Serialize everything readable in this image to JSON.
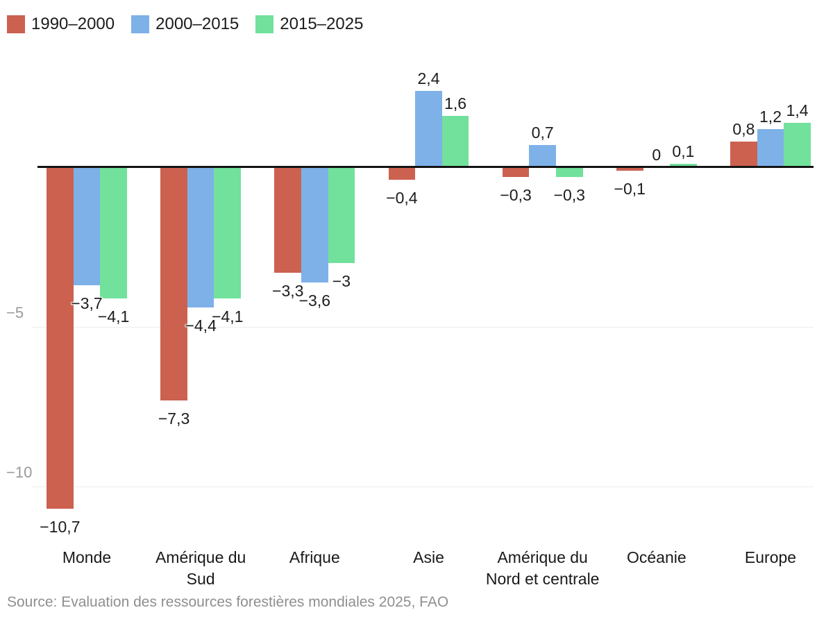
{
  "legend": {
    "items": [
      {
        "label": "1990–2000",
        "color": "#cc6150"
      },
      {
        "label": "2000–2015",
        "color": "#7db1e8"
      },
      {
        "label": "2015–2025",
        "color": "#71e19c"
      }
    ]
  },
  "chart_data": {
    "type": "bar",
    "title": "",
    "xlabel": "",
    "ylabel": "",
    "categories": [
      "Monde",
      "Amérique du Sud",
      "Afrique",
      "Asie",
      "Amérique du Nord et centrale",
      "Océanie",
      "Europe"
    ],
    "category_lines": [
      [
        "Monde"
      ],
      [
        "Amérique du",
        "Sud"
      ],
      [
        "Afrique"
      ],
      [
        "Asie"
      ],
      [
        "Amérique du",
        "Nord et centrale"
      ],
      [
        "Océanie"
      ],
      [
        "Europe"
      ]
    ],
    "series": [
      {
        "name": "1990–2000",
        "color": "#cc6150",
        "values": [
          -10.7,
          -7.3,
          -3.3,
          -0.4,
          -0.3,
          -0.1,
          0.8
        ],
        "labels": [
          "−10,7",
          "−7,3",
          "−3,3",
          "−0,4",
          "−0,3",
          "−0,1",
          "0,8"
        ]
      },
      {
        "name": "2000–2015",
        "color": "#7db1e8",
        "values": [
          -3.7,
          -4.4,
          -3.6,
          2.4,
          0.7,
          0,
          1.2
        ],
        "labels": [
          "−3,7",
          "−4,4",
          "−3,6",
          "2,4",
          "0,7",
          "0",
          "1,2"
        ]
      },
      {
        "name": "2015–2025",
        "color": "#71e19c",
        "values": [
          -4.1,
          -4.1,
          -3,
          1.6,
          -0.3,
          0.1,
          1.4
        ],
        "labels": [
          "−4,1",
          "−4,1",
          "−3",
          "1,6",
          "−0,3",
          "0,1",
          "1,4"
        ]
      }
    ],
    "yticks": [
      {
        "value": -5,
        "label": "−5"
      },
      {
        "value": -10,
        "label": "−10"
      }
    ],
    "ylim": [
      -11.6,
      3.2
    ],
    "grid": "horizontal",
    "legend_position": "top-left"
  },
  "source": "Source: Evaluation des ressources forestières mondiales 2025, FAO",
  "colors": {
    "background": "#ffffff",
    "axis_line": "#141414",
    "gridline": "#ececec",
    "tick_label": "#9a9a9a",
    "value_label": "#1c1c1c",
    "category_label": "#191919",
    "source_text": "#8f8f8f"
  }
}
